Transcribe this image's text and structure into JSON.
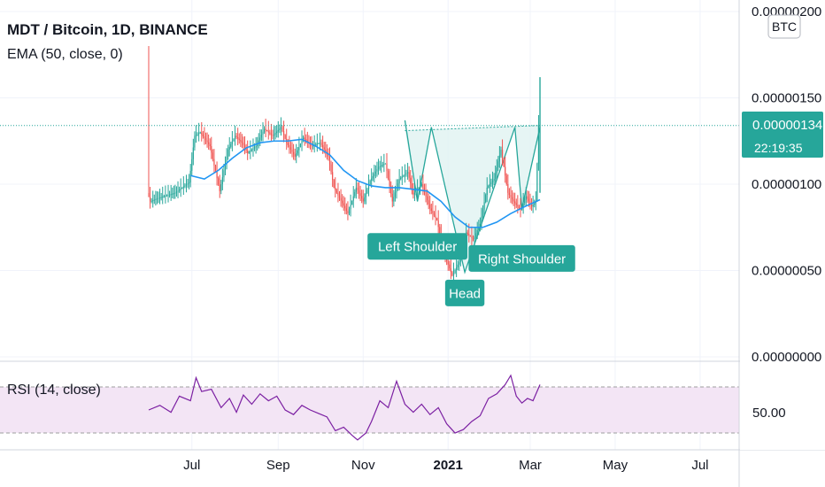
{
  "header": {
    "symbol": "MDT / Bitcoin, 1D, BINANCE",
    "ema_label": "EMA (50, close, 0)",
    "rsi_label": "RSI (14, close)",
    "currency_badge": "BTC"
  },
  "price_axis": {
    "ticks": [
      {
        "value": 2e-06,
        "label": "0.00000200"
      },
      {
        "value": 1.5e-06,
        "label": "0.00000150"
      },
      {
        "value": 1e-06,
        "label": "0.00000100"
      },
      {
        "value": 5e-07,
        "label": "0.00000050"
      },
      {
        "value": 0.0,
        "label": "0.00000000"
      }
    ],
    "last_price": {
      "value": 1.34e-06,
      "label": "0.00000134",
      "countdown": "22:19:35"
    }
  },
  "rsi_axis": {
    "level_label": "50.00",
    "upper_band": 70,
    "lower_band": 30
  },
  "time_axis": {
    "ticks": [
      {
        "day": 31,
        "label": "Jul",
        "bold": false
      },
      {
        "day": 93,
        "label": "Sep",
        "bold": false
      },
      {
        "day": 154,
        "label": "Nov",
        "bold": false
      },
      {
        "day": 215,
        "label": "2021",
        "bold": true
      },
      {
        "day": 274,
        "label": "Mar",
        "bold": false
      },
      {
        "day": 335,
        "label": "May",
        "bold": false
      },
      {
        "day": 396,
        "label": "Jul",
        "bold": false
      }
    ]
  },
  "colors": {
    "up": "#26a69a",
    "down": "#ef5350",
    "ema": "#2196f3",
    "rsi": "#7b1fa2",
    "rsi_band": "#f3e5f5",
    "pattern": "#26a69a",
    "pattern_fill": "#e0f2f1",
    "label_bg": "#26a69a",
    "grid": "#f0f3fa"
  },
  "annotations": [
    {
      "text": "Left Shoulder",
      "day": 193,
      "price": 6.4e-07
    },
    {
      "text": "Head",
      "day": 227,
      "price": 3.7e-07
    },
    {
      "text": "Right Shoulder",
      "day": 268,
      "price": 5.7e-07
    }
  ],
  "chart_data": {
    "type": "line",
    "title": "MDT / Bitcoin, 1D, BINANCE",
    "ylim": [
      0,
      2.1e-06
    ],
    "price_path": {
      "x_days": [
        0,
        2,
        8,
        20,
        30,
        34,
        38,
        45,
        52,
        58,
        63,
        68,
        72,
        78,
        84,
        90,
        96,
        100,
        106,
        112,
        118,
        124,
        130,
        134,
        138,
        144,
        150,
        155,
        160,
        166,
        171,
        176,
        181,
        187,
        191,
        197,
        203,
        208,
        213,
        219,
        224,
        229,
        234,
        239,
        244,
        249,
        254,
        259,
        263,
        268,
        272,
        276,
        279,
        281
      ],
      "values": [
        9.5e-07,
        9e-07,
        9.2e-07,
        9.5e-07,
        1.01e-06,
        1.28e-06,
        1.3e-06,
        1.22e-06,
        9.6e-07,
        1.2e-06,
        1.28e-06,
        1.24e-06,
        1.18e-06,
        1.22e-06,
        1.32e-06,
        1.28e-06,
        1.33e-06,
        1.24e-06,
        1.16e-06,
        1.27e-06,
        1.22e-06,
        1.24e-06,
        1.16e-06,
        9.8e-07,
        9.2e-07,
        8.3e-07,
        9.8e-07,
        9e-07,
        1.02e-06,
        1.1e-06,
        1.12e-06,
        9e-07,
        1.03e-06,
        1.07e-06,
        9.4e-07,
        1e-06,
        8.6e-07,
        7.9e-07,
        6e-07,
        4.7e-07,
        5.5e-07,
        7.2e-07,
        6.8e-07,
        7.7e-07,
        9.8e-07,
        1.03e-06,
        1.2e-06,
        9.5e-07,
        9e-07,
        8.5e-07,
        9.3e-07,
        8.7e-07,
        9e-07,
        1.34e-06
      ]
    },
    "ema50": {
      "x_days": [
        30,
        40,
        50,
        60,
        70,
        80,
        90,
        100,
        110,
        120,
        130,
        140,
        150,
        160,
        170,
        180,
        190,
        200,
        210,
        220,
        230,
        240,
        250,
        260,
        270,
        281
      ],
      "values": [
        1.05e-06,
        1.03e-06,
        1.08e-06,
        1.15e-06,
        1.21e-06,
        1.24e-06,
        1.25e-06,
        1.25e-06,
        1.26e-06,
        1.22e-06,
        1.17e-06,
        1.08e-06,
        1.02e-06,
        9.9e-07,
        9.8e-07,
        9.8e-07,
        9.7e-07,
        9.6e-07,
        9e-07,
        8.1e-07,
        7.5e-07,
        7.5e-07,
        7.8e-07,
        8.3e-07,
        8.7e-07,
        9.1e-07
      ]
    },
    "rsi14": {
      "x_days": [
        0,
        8,
        16,
        22,
        30,
        34,
        38,
        45,
        52,
        58,
        63,
        68,
        74,
        80,
        86,
        92,
        98,
        104,
        110,
        116,
        122,
        128,
        134,
        140,
        146,
        150,
        156,
        160,
        166,
        172,
        178,
        184,
        190,
        196,
        202,
        208,
        214,
        220,
        226,
        232,
        238,
        244,
        250,
        256,
        260,
        264,
        268,
        272,
        276,
        281
      ],
      "values": [
        50,
        54,
        48,
        62,
        58,
        78,
        66,
        68,
        52,
        60,
        48,
        63,
        55,
        64,
        58,
        62,
        50,
        46,
        54,
        50,
        47,
        44,
        32,
        35,
        28,
        24,
        30,
        40,
        58,
        52,
        75,
        55,
        48,
        55,
        46,
        52,
        38,
        30,
        33,
        40,
        45,
        60,
        64,
        72,
        80,
        62,
        56,
        60,
        58,
        72
      ]
    },
    "pattern_points": [
      {
        "day": 184,
        "price": 1.37e-06
      },
      {
        "day": 193,
        "price": 9e-07
      },
      {
        "day": 203,
        "price": 1.33e-06
      },
      {
        "day": 227,
        "price": 4.9e-07
      },
      {
        "day": 263,
        "price": 1.33e-06
      },
      {
        "day": 268,
        "price": 8.6e-07
      },
      {
        "day": 281,
        "price": 1.33e-06
      }
    ],
    "neckline": [
      {
        "day": 184,
        "price": 1.31e-06
      },
      {
        "day": 281,
        "price": 1.34e-06
      }
    ]
  }
}
